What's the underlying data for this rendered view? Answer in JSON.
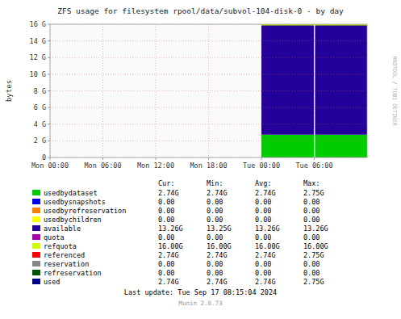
{
  "chart_data": {
    "type": "area",
    "title": "ZFS usage for filesystem rpool/data/subvol-104-disk-0 - by day",
    "y_label": "bytes",
    "stacked": true,
    "grid": true,
    "x": [
      86400,
      108060,
      129600
    ],
    "xlim": [
      0,
      129600
    ],
    "xticks": [
      {
        "value": 0,
        "label": "Mon 00:00"
      },
      {
        "value": 21600,
        "label": "Mon 06:00"
      },
      {
        "value": 43200,
        "label": "Mon 12:00"
      },
      {
        "value": 64800,
        "label": "Mon 18:00"
      },
      {
        "value": 86400,
        "label": "Tue 00:00"
      },
      {
        "value": 108000,
        "label": "Tue 06:00"
      }
    ],
    "ylim": [
      0,
      17179869184
    ],
    "yticks": [
      0,
      {
        "value": 2147483648,
        "label": "2 G"
      },
      {
        "value": 4294967296,
        "label": "4 G"
      },
      {
        "value": 6442450944,
        "label": "6 G"
      },
      {
        "value": 8589934592,
        "label": "8 G"
      },
      {
        "value": 10737418240,
        "label": "10 G"
      },
      {
        "value": 12884901888,
        "label": "12 G"
      },
      {
        "value": 15032385536,
        "label": "14 G"
      },
      {
        "value": 17179869184,
        "label": "16 G"
      }
    ],
    "legend_columns": [
      "Cur:",
      "Min:",
      "Avg:",
      "Max:"
    ],
    "series": [
      {
        "name": "usedbydataset",
        "color": "#00cc00",
        "type": "area",
        "values": [
          2944937984,
          2944937984,
          2944937984
        ],
        "cur": "2.74G",
        "min": "2.74G",
        "avg": "2.74G",
        "max": "2.75G"
      },
      {
        "name": "usedbysnapshots",
        "color": "#0000ff",
        "cur": "0.00",
        "min": "0.00",
        "avg": "0.00",
        "max": "0.00"
      },
      {
        "name": "usedbyrefreservation",
        "color": "#ff7f00",
        "cur": "0.00",
        "min": "0.00",
        "avg": "0.00",
        "max": "0.00"
      },
      {
        "name": "usedbychildren",
        "color": "#ffff00",
        "cur": "0.00",
        "min": "0.00",
        "avg": "0.00",
        "max": "0.00"
      },
      {
        "name": "available",
        "color": "#220099",
        "type": "area",
        "values": [
          14234931200,
          14234931200,
          14234931200
        ],
        "cur": "13.26G",
        "min": "13.25G",
        "avg": "13.26G",
        "max": "13.26G"
      },
      {
        "name": "quota",
        "color": "#aa00aa",
        "cur": "0.00",
        "min": "0.00",
        "avg": "0.00",
        "max": "0.00"
      },
      {
        "name": "refquota",
        "color": "#ccff00",
        "type": "line",
        "values": [
          17179869184,
          17179869184,
          17179869184
        ],
        "cur": "16.00G",
        "min": "16.00G",
        "avg": "16.00G",
        "max": "16.00G"
      },
      {
        "name": "referenced",
        "color": "#ff0000",
        "cur": "2.74G",
        "min": "2.74G",
        "avg": "2.74G",
        "max": "2.75G"
      },
      {
        "name": "reservation",
        "color": "#888888",
        "cur": "0.00",
        "min": "0.00",
        "avg": "0.00",
        "max": "0.00"
      },
      {
        "name": "refreservation",
        "color": "#005500",
        "cur": "0.00",
        "min": "0.00",
        "avg": "0.00",
        "max": "0.00"
      },
      {
        "name": "used",
        "color": "#000088",
        "cur": "2.74G",
        "min": "2.74G",
        "avg": "2.74G",
        "max": "2.75G"
      }
    ],
    "annotations": [
      "Last update: Tue Sep 17 08:15:04 2024",
      "Munin 2.0.73",
      "RRDTOOL / TOBI OETIKER"
    ]
  }
}
